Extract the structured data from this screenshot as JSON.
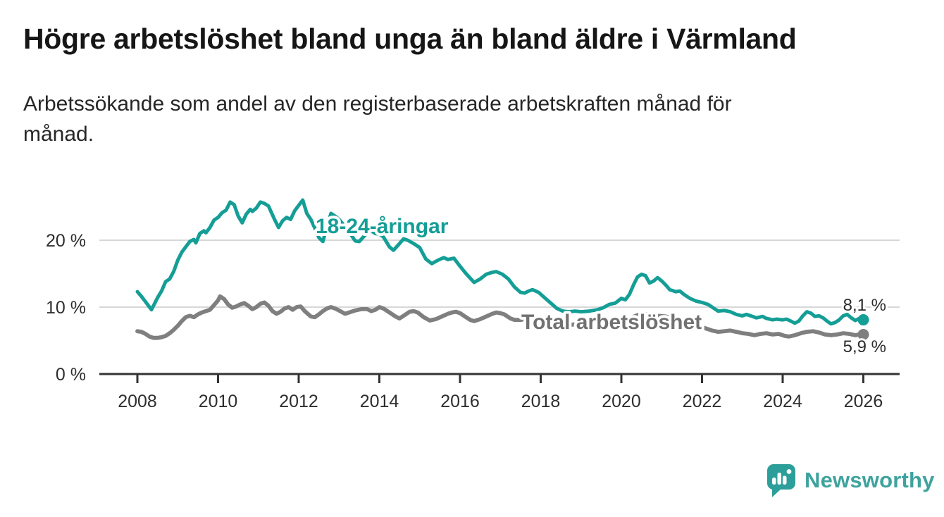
{
  "header": {
    "title": "Högre arbetslöshet bland unga än bland äldre i Värmland",
    "subtitle": "Arbetssökande som andel av den registerbaserade arbetskraften månad för\nmånad."
  },
  "chart": {
    "series_labels": {
      "youth": "18-24-åringar",
      "total": "Total arbetslöshet"
    },
    "end_labels": {
      "youth": "8,1 %",
      "total": "5,9 %"
    },
    "colors": {
      "youth_line": "#149e96",
      "total_line": "#7f7f7f",
      "total_label": "#717171",
      "grid": "#d7d7d7",
      "axis": "#333333",
      "tick_text": "#2e2e2e"
    }
  },
  "chart_data": {
    "type": "line",
    "title": "Högre arbetslöshet bland unga än bland äldre i Värmland",
    "subtitle": "Arbetssökande som andel av den registerbaserade arbetskraften månad för månad.",
    "xlabel": "",
    "ylabel": "",
    "xlim": [
      2007.1,
      2026.9
    ],
    "ylim": [
      0,
      27.5
    ],
    "grid": "horizontal",
    "legend_position": "inline-labels",
    "y_ticks": [
      {
        "label": "20 %",
        "value": 20
      },
      {
        "label": "10 %",
        "value": 10
      },
      {
        "label": "0 %",
        "value": 0
      }
    ],
    "x_ticks": [
      {
        "label": "2008",
        "value": 2008
      },
      {
        "label": "2010",
        "value": 2010
      },
      {
        "label": "2012",
        "value": 2012
      },
      {
        "label": "2014",
        "value": 2014
      },
      {
        "label": "2016",
        "value": 2016
      },
      {
        "label": "2018",
        "value": 2018
      },
      {
        "label": "2020",
        "value": 2020
      },
      {
        "label": "2022",
        "value": 2022
      },
      {
        "label": "2024",
        "value": 2024
      },
      {
        "label": "2026",
        "value": 2026
      }
    ],
    "series": [
      {
        "name": "18-24-åringar",
        "color": "#149e96",
        "end_value_label": "8,1 %",
        "end_value": 8.1,
        "x": [
          2008.0,
          2008.1,
          2008.2,
          2008.35,
          2008.5,
          2008.6,
          2008.7,
          2008.8,
          2008.9,
          2009.0,
          2009.1,
          2009.2,
          2009.3,
          2009.4,
          2009.45,
          2009.55,
          2009.65,
          2009.7,
          2009.8,
          2009.9,
          2010.0,
          2010.1,
          2010.2,
          2010.3,
          2010.4,
          2010.5,
          2010.6,
          2010.7,
          2010.8,
          2010.85,
          2010.95,
          2011.05,
          2011.15,
          2011.25,
          2011.4,
          2011.5,
          2011.6,
          2011.7,
          2011.8,
          2011.9,
          2012.0,
          2012.1,
          2012.2,
          2012.3,
          2012.4,
          2012.5,
          2012.6,
          2012.7,
          2012.8,
          2012.9,
          2013.0,
          2013.1,
          2013.25,
          2013.4,
          2013.5,
          2013.65,
          2013.8,
          2013.9,
          2014.0,
          2014.1,
          2014.25,
          2014.35,
          2014.5,
          2014.6,
          2014.7,
          2014.85,
          2015.0,
          2015.15,
          2015.3,
          2015.45,
          2015.6,
          2015.7,
          2015.85,
          2016.0,
          2016.15,
          2016.35,
          2016.5,
          2016.65,
          2016.8,
          2016.9,
          2017.05,
          2017.2,
          2017.35,
          2017.5,
          2017.6,
          2017.7,
          2017.8,
          2017.95,
          2018.1,
          2018.25,
          2018.4,
          2018.55,
          2018.7,
          2018.85,
          2019.0,
          2019.2,
          2019.4,
          2019.55,
          2019.7,
          2019.85,
          2020.0,
          2020.1,
          2020.2,
          2020.3,
          2020.4,
          2020.5,
          2020.6,
          2020.7,
          2020.8,
          2020.9,
          2021.0,
          2021.1,
          2021.2,
          2021.35,
          2021.45,
          2021.55,
          2021.7,
          2021.85,
          2022.0,
          2022.15,
          2022.3,
          2022.4,
          2022.55,
          2022.7,
          2022.85,
          2023.0,
          2023.1,
          2023.25,
          2023.35,
          2023.5,
          2023.6,
          2023.75,
          2023.85,
          2024.0,
          2024.1,
          2024.2,
          2024.3,
          2024.4,
          2024.5,
          2024.6,
          2024.7,
          2024.8,
          2024.9,
          2025.0,
          2025.1,
          2025.2,
          2025.3,
          2025.4,
          2025.5,
          2025.6,
          2025.7,
          2025.8,
          2025.9,
          2026.0
        ],
        "values": [
          12.3,
          11.6,
          10.8,
          9.6,
          11.4,
          12.4,
          13.8,
          14.2,
          15.3,
          17.0,
          18.2,
          19.0,
          19.8,
          20.1,
          19.6,
          21.0,
          21.4,
          21.1,
          21.9,
          23.0,
          23.4,
          24.1,
          24.5,
          25.7,
          25.3,
          23.6,
          22.6,
          23.9,
          24.6,
          24.3,
          24.8,
          25.7,
          25.5,
          25.1,
          23.1,
          21.9,
          22.9,
          23.4,
          23.1,
          24.4,
          25.2,
          26.0,
          24.0,
          23.1,
          21.8,
          20.4,
          19.8,
          22.0,
          24.0,
          23.6,
          23.1,
          22.4,
          21.2,
          19.9,
          19.8,
          20.8,
          21.4,
          21.0,
          20.9,
          20.5,
          19.0,
          18.5,
          19.5,
          20.2,
          20.0,
          19.5,
          18.9,
          17.2,
          16.5,
          17.0,
          17.4,
          17.1,
          17.3,
          16.1,
          15.0,
          13.7,
          14.2,
          14.9,
          15.2,
          15.3,
          14.9,
          14.2,
          13.0,
          12.2,
          12.1,
          12.4,
          12.6,
          12.2,
          11.4,
          10.6,
          9.8,
          9.4,
          9.3,
          9.4,
          9.3,
          9.4,
          9.6,
          9.9,
          10.4,
          10.6,
          11.3,
          11.1,
          11.9,
          13.3,
          14.5,
          14.9,
          14.7,
          13.6,
          13.9,
          14.4,
          13.9,
          13.3,
          12.6,
          12.3,
          12.4,
          11.9,
          11.3,
          10.9,
          10.7,
          10.4,
          9.8,
          9.4,
          9.5,
          9.3,
          8.9,
          8.7,
          8.9,
          8.6,
          8.4,
          8.6,
          8.3,
          8.1,
          8.2,
          8.1,
          8.2,
          7.9,
          7.6,
          7.9,
          8.7,
          9.3,
          9.1,
          8.6,
          8.7,
          8.4,
          7.9,
          7.5,
          7.7,
          8.1,
          8.7,
          8.9,
          8.4,
          8.0,
          8.3,
          8.1
        ]
      },
      {
        "name": "Total arbetslöshet",
        "color": "#7f7f7f",
        "end_value_label": "5,9 %",
        "end_value": 5.9,
        "x": [
          2008.0,
          2008.1,
          2008.2,
          2008.3,
          2008.4,
          2008.5,
          2008.6,
          2008.7,
          2008.8,
          2008.9,
          2009.0,
          2009.1,
          2009.2,
          2009.3,
          2009.4,
          2009.5,
          2009.6,
          2009.7,
          2009.8,
          2009.9,
          2010.0,
          2010.05,
          2010.15,
          2010.25,
          2010.35,
          2010.45,
          2010.55,
          2010.65,
          2010.75,
          2010.85,
          2010.95,
          2011.05,
          2011.15,
          2011.25,
          2011.35,
          2011.45,
          2011.55,
          2011.65,
          2011.75,
          2011.85,
          2011.95,
          2012.05,
          2012.15,
          2012.3,
          2012.4,
          2012.5,
          2012.6,
          2012.7,
          2012.8,
          2012.9,
          2013.0,
          2013.15,
          2013.25,
          2013.4,
          2013.55,
          2013.7,
          2013.8,
          2013.9,
          2014.0,
          2014.1,
          2014.25,
          2014.4,
          2014.5,
          2014.6,
          2014.75,
          2014.85,
          2014.95,
          2015.1,
          2015.25,
          2015.4,
          2015.55,
          2015.7,
          2015.8,
          2015.9,
          2016.0,
          2016.1,
          2016.25,
          2016.35,
          2016.5,
          2016.65,
          2016.8,
          2016.9,
          2017.0,
          2017.1,
          2017.25,
          2017.35,
          2017.5,
          2017.6,
          2017.75,
          2017.9,
          2018.05,
          2018.2,
          2018.4,
          2018.6,
          2018.8,
          2019.0,
          2019.2,
          2019.4,
          2019.6,
          2019.8,
          2020.0,
          2020.2,
          2020.4,
          2020.55,
          2020.7,
          2020.9,
          2021.1,
          2021.3,
          2021.5,
          2021.7,
          2021.9,
          2022.1,
          2022.25,
          2022.4,
          2022.55,
          2022.7,
          2022.85,
          2023.0,
          2023.15,
          2023.3,
          2023.45,
          2023.6,
          2023.75,
          2023.9,
          2024.05,
          2024.15,
          2024.3,
          2024.45,
          2024.6,
          2024.75,
          2024.9,
          2025.05,
          2025.2,
          2025.35,
          2025.5,
          2025.65,
          2025.8,
          2025.9,
          2026.0
        ],
        "values": [
          6.4,
          6.3,
          6.0,
          5.6,
          5.4,
          5.4,
          5.5,
          5.7,
          6.1,
          6.6,
          7.2,
          7.9,
          8.5,
          8.7,
          8.5,
          8.9,
          9.2,
          9.4,
          9.6,
          10.3,
          11.0,
          11.6,
          11.2,
          10.4,
          9.9,
          10.1,
          10.4,
          10.6,
          10.2,
          9.7,
          10.0,
          10.5,
          10.7,
          10.2,
          9.4,
          9.0,
          9.3,
          9.8,
          10.0,
          9.6,
          10.0,
          10.1,
          9.4,
          8.6,
          8.5,
          8.9,
          9.4,
          9.8,
          10.0,
          9.8,
          9.5,
          9.0,
          9.2,
          9.5,
          9.7,
          9.7,
          9.4,
          9.6,
          10.0,
          9.8,
          9.2,
          8.6,
          8.3,
          8.7,
          9.3,
          9.4,
          9.2,
          8.5,
          8.0,
          8.2,
          8.6,
          9.0,
          9.2,
          9.3,
          9.1,
          8.7,
          8.1,
          7.9,
          8.2,
          8.6,
          9.0,
          9.2,
          9.1,
          8.9,
          8.3,
          8.1,
          8.1,
          8.2,
          8.1,
          7.9,
          7.6,
          7.3,
          7.1,
          7.2,
          7.4,
          7.3,
          7.1,
          6.9,
          7.1,
          7.4,
          7.7,
          8.3,
          8.8,
          9.0,
          8.9,
          8.7,
          8.6,
          8.3,
          7.9,
          7.5,
          7.2,
          6.8,
          6.5,
          6.3,
          6.4,
          6.5,
          6.3,
          6.1,
          6.0,
          5.8,
          6.0,
          6.1,
          5.9,
          6.0,
          5.7,
          5.6,
          5.8,
          6.1,
          6.3,
          6.4,
          6.2,
          5.9,
          5.8,
          5.9,
          6.1,
          6.0,
          5.8,
          5.9,
          5.9
        ]
      }
    ]
  },
  "footer": {
    "brand": "Newsworthy"
  }
}
